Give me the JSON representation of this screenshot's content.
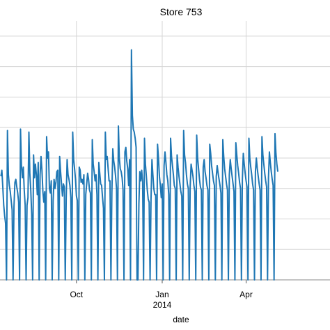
{
  "chart_data": {
    "type": "line",
    "title": "Store 753",
    "xlabel": "date",
    "ylabel": "",
    "x_ticks": [
      {
        "date": "2013-10-01",
        "label": "Oct",
        "sublabel": ""
      },
      {
        "date": "2014-01-01",
        "label": "Jan",
        "sublabel": "2014"
      },
      {
        "date": "2014-04-01",
        "label": "Apr",
        "sublabel": ""
      }
    ],
    "xlim": [
      "2013-07-11",
      "2014-06-30"
    ],
    "ylim": [
      0,
      17
    ],
    "grid": true,
    "series": [
      {
        "color": "#1f77b4",
        "x_start": "2013-07-12",
        "values": [
          6.8,
          7.2,
          6.1,
          4.9,
          4.2,
          3.7,
          0,
          9.8,
          6.9,
          6.2,
          5.8,
          5.2,
          4.6,
          0,
          4.8,
          6.4,
          6.6,
          6.1,
          5.7,
          5.1,
          0,
          9.9,
          7.5,
          6.7,
          7.4,
          5.9,
          4.9,
          0,
          4.9,
          5.4,
          9.7,
          7.0,
          5.9,
          4.3,
          0,
          8.2,
          6.7,
          7.6,
          6.9,
          5.6,
          7.7,
          0,
          6.9,
          8.1,
          7.2,
          5.8,
          5.1,
          5.8,
          0,
          9.4,
          8.0,
          8.4,
          6.0,
          5.7,
          6.5,
          0,
          5.2,
          6.6,
          6.0,
          6.4,
          7.1,
          7.2,
          0,
          8.1,
          7.1,
          6.3,
          5.5,
          6.3,
          6.1,
          0,
          5.3,
          7.9,
          6.9,
          6.6,
          6.2,
          5.4,
          0,
          9.7,
          7.9,
          7.3,
          6.6,
          5.5,
          5.2,
          0,
          7.4,
          7.2,
          6.4,
          6.6,
          6.3,
          6.9,
          0,
          5.6,
          6.3,
          7.0,
          6.6,
          5.9,
          5.7,
          0,
          9.2,
          7.6,
          7.1,
          6.5,
          6.9,
          5.6,
          0,
          7.7,
          7.0,
          6.3,
          6.2,
          5.4,
          4.7,
          0,
          9.7,
          7.9,
          8.1,
          7.3,
          6.5,
          6.5,
          0,
          5.7,
          8.6,
          7.8,
          7.4,
          6.8,
          6.0,
          0,
          10.1,
          8.0,
          7.3,
          7.1,
          6.7,
          5.9,
          0,
          8.4,
          8.7,
          7.8,
          7.3,
          6.2,
          7.9,
          0,
          15.1,
          10.8,
          9.9,
          9.7,
          9.3,
          8.7,
          0,
          0,
          5.0,
          7.1,
          6.5,
          7.2,
          6.4,
          0,
          9.3,
          7.6,
          6.8,
          5.9,
          5.3,
          5.1,
          0,
          5.3,
          7.9,
          6.9,
          6.0,
          5.6,
          5.6,
          0,
          8.9,
          8.0,
          6.8,
          6.2,
          5.4,
          6.3,
          0,
          7.5,
          8.4,
          7.7,
          6.9,
          6.5,
          5.6,
          0,
          9.3,
          8.1,
          7.5,
          6.9,
          6.2,
          6.0,
          0,
          8.2,
          7.4,
          6.8,
          6.3,
          5.8,
          5.5,
          0,
          9.8,
          8.2,
          7.7,
          6.9,
          6.3,
          6.0,
          0,
          6.1,
          7.6,
          7.2,
          6.8,
          6.2,
          5.8,
          0,
          9.5,
          8.0,
          7.3,
          6.6,
          6.1,
          5.9,
          0,
          7.4,
          7.9,
          7.1,
          6.7,
          6.2,
          5.9,
          0,
          8.9,
          8.3,
          7.5,
          7.0,
          6.5,
          6.2,
          0,
          6.8,
          7.5,
          7.0,
          6.6,
          6.2,
          5.7,
          0,
          9.2,
          8.1,
          7.3,
          6.8,
          6.3,
          5.9,
          0,
          6.9,
          7.9,
          7.3,
          6.8,
          6.3,
          5.8,
          0,
          9.0,
          8.2,
          7.5,
          7.0,
          6.4,
          6.0,
          0,
          6.6,
          8.3,
          7.6,
          7.0,
          6.5,
          6.1,
          0,
          9.3,
          8.0,
          7.4,
          6.9,
          6.3,
          5.9,
          0,
          7.1,
          8.0,
          7.3,
          6.8,
          6.3,
          5.9,
          0,
          9.4,
          8.2,
          7.6,
          7.0,
          6.5,
          6.1,
          0,
          6.7,
          8.4,
          7.7,
          7.1,
          6.6,
          6.2,
          0,
          9.6,
          8.3,
          7.6,
          7.1
        ]
      }
    ]
  }
}
